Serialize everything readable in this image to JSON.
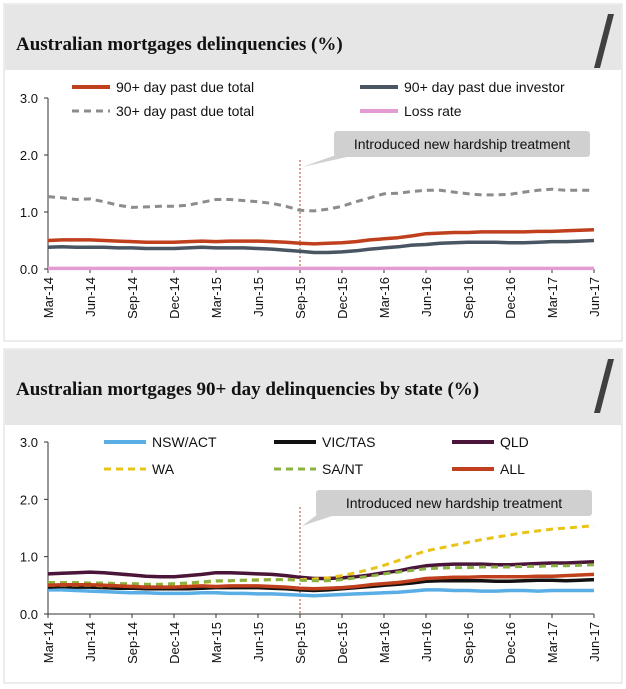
{
  "chart_data": [
    {
      "type": "line",
      "title": "Australian mortgages delinquencies (%)",
      "ylim": [
        0,
        3
      ],
      "yticks": [
        "0.0",
        "1.0",
        "2.0",
        "3.0"
      ],
      "x": [
        "Mar-14",
        "Apr-14",
        "May-14",
        "Jun-14",
        "Jul-14",
        "Aug-14",
        "Sep-14",
        "Oct-14",
        "Nov-14",
        "Dec-14",
        "Jan-15",
        "Feb-15",
        "Mar-15",
        "Apr-15",
        "May-15",
        "Jun-15",
        "Jul-15",
        "Aug-15",
        "Sep-15",
        "Oct-15",
        "Nov-15",
        "Dec-15",
        "Jan-16",
        "Feb-16",
        "Mar-16",
        "Apr-16",
        "May-16",
        "Jun-16",
        "Jul-16",
        "Aug-16",
        "Sep-16",
        "Oct-16",
        "Nov-16",
        "Dec-16",
        "Jan-17",
        "Feb-17",
        "Mar-17",
        "Apr-17",
        "May-17",
        "Jun-17"
      ],
      "xtick_labels": [
        "Mar-14",
        "Jun-14",
        "Sep-14",
        "Dec-14",
        "Mar-15",
        "Jun-15",
        "Sep-15",
        "Dec-15",
        "Mar-16",
        "Jun-16",
        "Sep-16",
        "Dec-16",
        "Mar-17",
        "Jun-17"
      ],
      "annotation": {
        "text": "Introduced new hardship treatment",
        "at": "Sep-15"
      },
      "legend": "top",
      "series": [
        {
          "name": "90+ day past due total",
          "color": "#c0401e",
          "dash": "solid",
          "values": [
            0.5,
            0.51,
            0.51,
            0.51,
            0.5,
            0.49,
            0.48,
            0.47,
            0.47,
            0.47,
            0.48,
            0.49,
            0.48,
            0.49,
            0.49,
            0.49,
            0.48,
            0.47,
            0.45,
            0.44,
            0.45,
            0.46,
            0.48,
            0.51,
            0.53,
            0.55,
            0.58,
            0.62,
            0.63,
            0.64,
            0.64,
            0.65,
            0.65,
            0.65,
            0.65,
            0.66,
            0.66,
            0.67,
            0.68,
            0.69
          ]
        },
        {
          "name": "90+ day past due investor",
          "color": "#4a5563",
          "dash": "solid",
          "values": [
            0.38,
            0.39,
            0.38,
            0.38,
            0.38,
            0.37,
            0.37,
            0.36,
            0.36,
            0.36,
            0.37,
            0.38,
            0.37,
            0.37,
            0.37,
            0.36,
            0.35,
            0.33,
            0.31,
            0.29,
            0.29,
            0.3,
            0.32,
            0.35,
            0.37,
            0.39,
            0.42,
            0.43,
            0.45,
            0.46,
            0.47,
            0.47,
            0.47,
            0.46,
            0.46,
            0.47,
            0.48,
            0.48,
            0.49,
            0.5
          ]
        },
        {
          "name": "30+ day past due total",
          "color": "#8c8c8c",
          "dash": "dashed",
          "values": [
            1.27,
            1.25,
            1.22,
            1.23,
            1.18,
            1.12,
            1.08,
            1.09,
            1.1,
            1.1,
            1.12,
            1.17,
            1.22,
            1.22,
            1.2,
            1.18,
            1.15,
            1.1,
            1.03,
            1.02,
            1.05,
            1.1,
            1.18,
            1.25,
            1.32,
            1.33,
            1.36,
            1.38,
            1.38,
            1.35,
            1.32,
            1.3,
            1.3,
            1.31,
            1.35,
            1.38,
            1.4,
            1.38,
            1.38,
            1.38
          ]
        },
        {
          "name": "Loss rate",
          "color": "#e39bd2",
          "dash": "solid",
          "values": [
            0.01,
            0.01,
            0.01,
            0.01,
            0.01,
            0.01,
            0.01,
            0.01,
            0.01,
            0.01,
            0.01,
            0.01,
            0.01,
            0.01,
            0.01,
            0.01,
            0.01,
            0.01,
            0.01,
            0.01,
            0.01,
            0.01,
            0.01,
            0.01,
            0.01,
            0.01,
            0.01,
            0.01,
            0.01,
            0.01,
            0.01,
            0.01,
            0.01,
            0.01,
            0.01,
            0.01,
            0.01,
            0.01,
            0.01,
            0.01
          ]
        }
      ]
    },
    {
      "type": "line",
      "title": "Australian mortgages 90+ day delinquencies by state (%)",
      "ylim": [
        0,
        3
      ],
      "yticks": [
        "0.0",
        "1.0",
        "2.0",
        "3.0"
      ],
      "x": [
        "Mar-14",
        "Apr-14",
        "May-14",
        "Jun-14",
        "Jul-14",
        "Aug-14",
        "Sep-14",
        "Oct-14",
        "Nov-14",
        "Dec-14",
        "Jan-15",
        "Feb-15",
        "Mar-15",
        "Apr-15",
        "May-15",
        "Jun-15",
        "Jul-15",
        "Aug-15",
        "Sep-15",
        "Oct-15",
        "Nov-15",
        "Dec-15",
        "Jan-16",
        "Feb-16",
        "Mar-16",
        "Apr-16",
        "May-16",
        "Jun-16",
        "Jul-16",
        "Aug-16",
        "Sep-16",
        "Oct-16",
        "Nov-16",
        "Dec-16",
        "Jan-17",
        "Feb-17",
        "Mar-17",
        "Apr-17",
        "May-17",
        "Jun-17"
      ],
      "xtick_labels": [
        "Mar-14",
        "Jun-14",
        "Sep-14",
        "Dec-14",
        "Mar-15",
        "Jun-15",
        "Sep-15",
        "Dec-15",
        "Mar-16",
        "Jun-16",
        "Sep-16",
        "Dec-16",
        "Mar-17",
        "Jun-17"
      ],
      "annotation": {
        "text": "Introduced new hardship treatment",
        "at": "Sep-15"
      },
      "legend": "top",
      "series": [
        {
          "name": "NSW/ACT",
          "color": "#5aaee6",
          "dash": "solid",
          "values": [
            0.42,
            0.42,
            0.41,
            0.4,
            0.39,
            0.38,
            0.37,
            0.37,
            0.36,
            0.36,
            0.36,
            0.37,
            0.37,
            0.36,
            0.36,
            0.35,
            0.35,
            0.34,
            0.33,
            0.32,
            0.33,
            0.34,
            0.35,
            0.36,
            0.37,
            0.38,
            0.4,
            0.42,
            0.42,
            0.41,
            0.41,
            0.4,
            0.4,
            0.41,
            0.41,
            0.4,
            0.41,
            0.41,
            0.41,
            0.41
          ]
        },
        {
          "name": "VIC/TAS",
          "color": "#111111",
          "dash": "solid",
          "values": [
            0.47,
            0.48,
            0.47,
            0.47,
            0.46,
            0.45,
            0.45,
            0.44,
            0.44,
            0.44,
            0.44,
            0.45,
            0.46,
            0.46,
            0.46,
            0.46,
            0.45,
            0.44,
            0.42,
            0.41,
            0.42,
            0.44,
            0.46,
            0.48,
            0.5,
            0.52,
            0.54,
            0.57,
            0.58,
            0.58,
            0.58,
            0.58,
            0.57,
            0.57,
            0.58,
            0.59,
            0.59,
            0.58,
            0.59,
            0.6
          ]
        },
        {
          "name": "QLD",
          "color": "#4a1538",
          "dash": "solid",
          "values": [
            0.7,
            0.71,
            0.72,
            0.73,
            0.72,
            0.7,
            0.68,
            0.66,
            0.65,
            0.65,
            0.67,
            0.69,
            0.72,
            0.72,
            0.71,
            0.7,
            0.69,
            0.67,
            0.64,
            0.62,
            0.62,
            0.63,
            0.65,
            0.68,
            0.72,
            0.75,
            0.8,
            0.84,
            0.86,
            0.87,
            0.87,
            0.87,
            0.86,
            0.86,
            0.87,
            0.88,
            0.89,
            0.89,
            0.9,
            0.91
          ]
        },
        {
          "name": "WA",
          "color": "#e8c41a",
          "dash": "dashed",
          "values": [
            0.5,
            0.5,
            0.5,
            0.5,
            0.49,
            0.49,
            0.5,
            0.5,
            0.51,
            0.52,
            0.53,
            0.55,
            0.57,
            0.58,
            0.59,
            0.6,
            0.6,
            0.6,
            0.6,
            0.61,
            0.63,
            0.67,
            0.72,
            0.78,
            0.85,
            0.93,
            1.02,
            1.1,
            1.15,
            1.2,
            1.25,
            1.3,
            1.34,
            1.38,
            1.42,
            1.45,
            1.48,
            1.5,
            1.52,
            1.54
          ]
        },
        {
          "name": "SA/NT",
          "color": "#8ab240",
          "dash": "dashed",
          "values": [
            0.55,
            0.55,
            0.55,
            0.54,
            0.54,
            0.53,
            0.53,
            0.52,
            0.52,
            0.53,
            0.54,
            0.56,
            0.58,
            0.58,
            0.59,
            0.59,
            0.6,
            0.6,
            0.59,
            0.58,
            0.58,
            0.6,
            0.63,
            0.66,
            0.7,
            0.73,
            0.76,
            0.79,
            0.8,
            0.81,
            0.81,
            0.82,
            0.82,
            0.82,
            0.83,
            0.83,
            0.84,
            0.84,
            0.85,
            0.86
          ]
        },
        {
          "name": "ALL",
          "color": "#c0401e",
          "dash": "solid",
          "values": [
            0.5,
            0.51,
            0.51,
            0.51,
            0.5,
            0.49,
            0.48,
            0.47,
            0.47,
            0.47,
            0.48,
            0.49,
            0.48,
            0.49,
            0.49,
            0.49,
            0.48,
            0.47,
            0.45,
            0.44,
            0.45,
            0.46,
            0.48,
            0.51,
            0.53,
            0.55,
            0.58,
            0.62,
            0.63,
            0.64,
            0.64,
            0.65,
            0.65,
            0.65,
            0.65,
            0.66,
            0.66,
            0.67,
            0.68,
            0.69
          ]
        }
      ]
    }
  ]
}
